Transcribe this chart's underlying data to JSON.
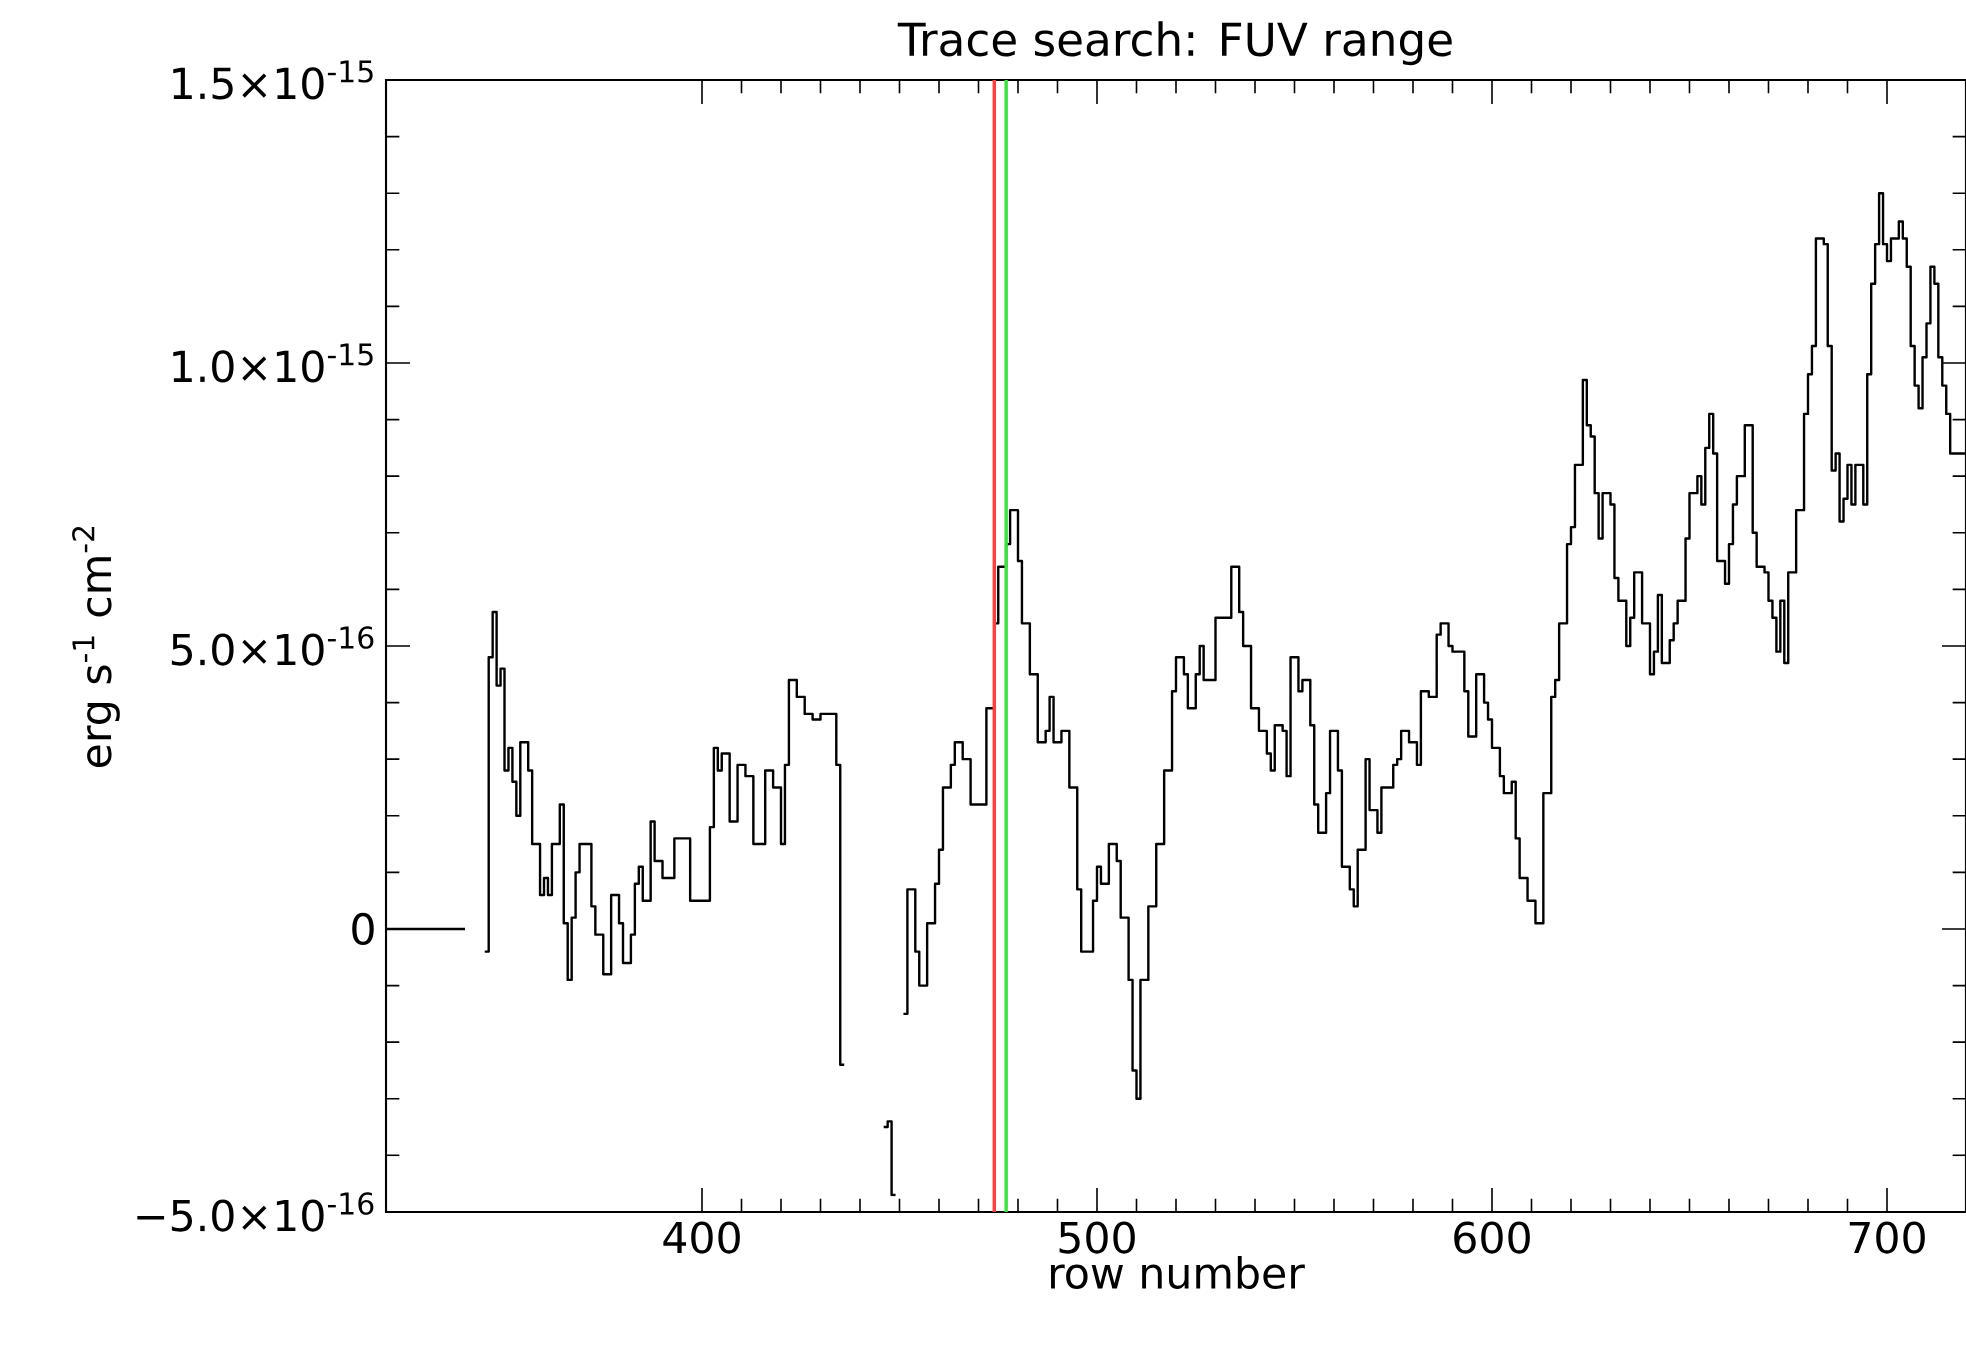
{
  "chart_data": {
    "type": "step",
    "title": "Trace search: FUV range",
    "xlabel": "row number",
    "ylabel": "erg s$^{-1}$ cm$^{-2}$",
    "xlim": [
      320,
      720
    ],
    "ylim": [
      -5e-16,
      1.5e-15
    ],
    "xticks": [
      400,
      500,
      600,
      700
    ],
    "yticks": [
      {
        "value": -5e-16,
        "label": "−5.0×10$^{-16}$"
      },
      0,
      {
        "value": 5e-16,
        "label": "5.0×10$^{-16}$"
      },
      {
        "value": 1e-15,
        "label": "1.0×10$^{-15}$"
      },
      {
        "value": 1.5e-15,
        "label": "1.5×10$^{-15}$"
      }
    ],
    "grid": false,
    "ref_lines": [
      {
        "axis": "x",
        "value": 474,
        "color": "#ff4040"
      },
      {
        "axis": "x",
        "value": 477,
        "color": "#40e040"
      }
    ],
    "series": [
      {
        "color": "#000000",
        "x": [
          320,
          340,
          341,
          345,
          346,
          347,
          348,
          349,
          350,
          351,
          352,
          353,
          354,
          356,
          357,
          359,
          360,
          361,
          362,
          364,
          365,
          366,
          367,
          368,
          369,
          372,
          373,
          375,
          377,
          379,
          380,
          382,
          383,
          384,
          385,
          387,
          388,
          390,
          393,
          397,
          402,
          403,
          404,
          405,
          407,
          409,
          411,
          413,
          416,
          418,
          420,
          421,
          422,
          424,
          426,
          428,
          430,
          434,
          435,
          436,
          437,
          446,
          447,
          448,
          449,
          450,
          451,
          452,
          454,
          455,
          457,
          459,
          460,
          461,
          463,
          464,
          466,
          468,
          472,
          474,
          475,
          477,
          478,
          480,
          481,
          483,
          485,
          487,
          488,
          489,
          491,
          493,
          495,
          496,
          499,
          500,
          501,
          503,
          505,
          506,
          508,
          509,
          510,
          511,
          513,
          515,
          517,
          519,
          520,
          522,
          523,
          525,
          526,
          527,
          529,
          530,
          532,
          534,
          536,
          537,
          539,
          541,
          543,
          544,
          545,
          547,
          548,
          549,
          551,
          552,
          554,
          555,
          556,
          558,
          559,
          561,
          562,
          564,
          565,
          566,
          568,
          569,
          571,
          572,
          575,
          576,
          577,
          579,
          581,
          582,
          584,
          586,
          587,
          589,
          590,
          593,
          594,
          596,
          598,
          599,
          600,
          602,
          603,
          605,
          606,
          607,
          609,
          611,
          613,
          615,
          616,
          617,
          619,
          620,
          621,
          623,
          624,
          625,
          626,
          627,
          628,
          630,
          631,
          632,
          634,
          635,
          636,
          638,
          640,
          641,
          642,
          643,
          645,
          646,
          647,
          649,
          650,
          652,
          653,
          654,
          655,
          656,
          657,
          659,
          660,
          661,
          662,
          664,
          666,
          667,
          669,
          670,
          671,
          672,
          673,
          674,
          675,
          677,
          679,
          680,
          681,
          682,
          684,
          685,
          686,
          687,
          688,
          689,
          690,
          691,
          692,
          694,
          695,
          696,
          697,
          698,
          699,
          700,
          701,
          703,
          704,
          705,
          706,
          707,
          708,
          709,
          710,
          711,
          712,
          713,
          714,
          715,
          716,
          720
        ],
        "values": [
          0,
          0,
          null,
          -4e-17,
          4.8e-16,
          5.6e-16,
          4.3e-16,
          4.6e-16,
          2.8e-16,
          3.2e-16,
          2.6e-16,
          2e-16,
          3.3e-16,
          2.8e-16,
          1.5e-16,
          6e-17,
          9e-17,
          6e-17,
          1.5e-16,
          2.2e-16,
          1e-17,
          -9e-17,
          2e-17,
          1e-16,
          1.5e-16,
          4e-17,
          -1e-17,
          -8e-17,
          6e-17,
          1e-17,
          -6e-17,
          -1e-17,
          8e-17,
          1.1e-16,
          5e-17,
          1.9e-16,
          1.2e-16,
          9e-17,
          1.6e-16,
          5e-17,
          1.8e-16,
          3.2e-16,
          2.8e-16,
          3.1e-16,
          1.9e-16,
          2.9e-16,
          2.7e-16,
          1.5e-16,
          2.8e-16,
          2.5e-16,
          1.5e-16,
          2.9e-16,
          4.4e-16,
          4.1e-16,
          3.8e-16,
          3.7e-16,
          3.8e-16,
          2.9e-16,
          -2.4e-16,
          -2.4e-16,
          null,
          -3.5e-16,
          -3.4e-16,
          -4.7e-16,
          -4.7e-16,
          null,
          -1.5e-16,
          7e-17,
          -4e-17,
          -1e-16,
          1e-17,
          8e-17,
          1.4e-16,
          2.5e-16,
          2.9e-16,
          3.3e-16,
          3e-16,
          2.2e-16,
          3.9e-16,
          5.4e-16,
          6.4e-16,
          6.8e-16,
          7.4e-16,
          6.5e-16,
          5.4e-16,
          4.5e-16,
          3.3e-16,
          3.5e-16,
          4.1e-16,
          3.3e-16,
          3.5e-16,
          2.5e-16,
          7e-17,
          -4e-17,
          5e-17,
          1.1e-16,
          8e-17,
          1.5e-16,
          1.2e-16,
          2e-17,
          -9e-17,
          -2.5e-16,
          -3e-16,
          -9e-17,
          4e-17,
          1.5e-16,
          2.8e-16,
          4.2e-16,
          4.8e-16,
          4.5e-16,
          3.9e-16,
          4.5e-16,
          5e-16,
          4.4e-16,
          4.4e-16,
          5.5e-16,
          5.5e-16,
          6.4e-16,
          5.6e-16,
          5e-16,
          3.9e-16,
          3.5e-16,
          3.1e-16,
          2.8e-16,
          3.6e-16,
          3.5e-16,
          2.7e-16,
          4.8e-16,
          4.2e-16,
          4.4e-16,
          3.6e-16,
          2.2e-16,
          1.7e-16,
          2.4e-16,
          3.5e-16,
          2.8e-16,
          1.1e-16,
          7e-17,
          4e-17,
          1.4e-16,
          3e-16,
          2.1e-16,
          1.7e-16,
          2.5e-16,
          2.9e-16,
          3e-16,
          3.5e-16,
          3.3e-16,
          2.9e-16,
          4.2e-16,
          4.1e-16,
          5.2e-16,
          5.4e-16,
          5e-16,
          4.9e-16,
          4.2e-16,
          3.4e-16,
          4.5e-16,
          4e-16,
          3.7e-16,
          3.2e-16,
          2.7e-16,
          2.4e-16,
          2.6e-16,
          1.6e-16,
          9e-17,
          5e-17,
          1e-17,
          2.4e-16,
          4.1e-16,
          4.4e-16,
          5.4e-16,
          6.8e-16,
          7.1e-16,
          8.2e-16,
          9.7e-16,
          8.9e-16,
          8.7e-16,
          7.7e-16,
          6.9e-16,
          7.7e-16,
          7.5e-16,
          6.2e-16,
          5.8e-16,
          5e-16,
          5.5e-16,
          6.3e-16,
          5.4e-16,
          4.5e-16,
          4.9e-16,
          5.9e-16,
          4.7e-16,
          5.1e-16,
          5.4e-16,
          5.8e-16,
          6.9e-16,
          7.7e-16,
          8e-16,
          7.5e-16,
          8.5e-16,
          9.1e-16,
          8.4e-16,
          6.5e-16,
          6.1e-16,
          6.8e-16,
          7.5e-16,
          8e-16,
          8.9e-16,
          7e-16,
          6.4e-16,
          6.3e-16,
          5.8e-16,
          5.5e-16,
          4.9e-16,
          5.8e-16,
          4.7e-16,
          6.3e-16,
          7.4e-16,
          9.1e-16,
          9.8e-16,
          1.03e-15,
          1.22e-15,
          1.21e-15,
          1.03e-15,
          8.1e-16,
          8.4e-16,
          7.2e-16,
          7.6e-16,
          8.2e-16,
          7.5e-16,
          8.2e-16,
          7.5e-16,
          9.8e-16,
          1.14e-15,
          1.21e-15,
          1.3e-15,
          1.21e-15,
          1.18e-15,
          1.22e-15,
          1.25e-15,
          1.22e-15,
          1.17e-15,
          1.03e-15,
          9.6e-16,
          9.2e-16,
          1.01e-15,
          1.07e-15,
          1.17e-15,
          1.14e-15,
          1.01e-15,
          9.6e-16,
          9.1e-16,
          8.4e-16,
          8.4e-16
        ]
      }
    ]
  }
}
